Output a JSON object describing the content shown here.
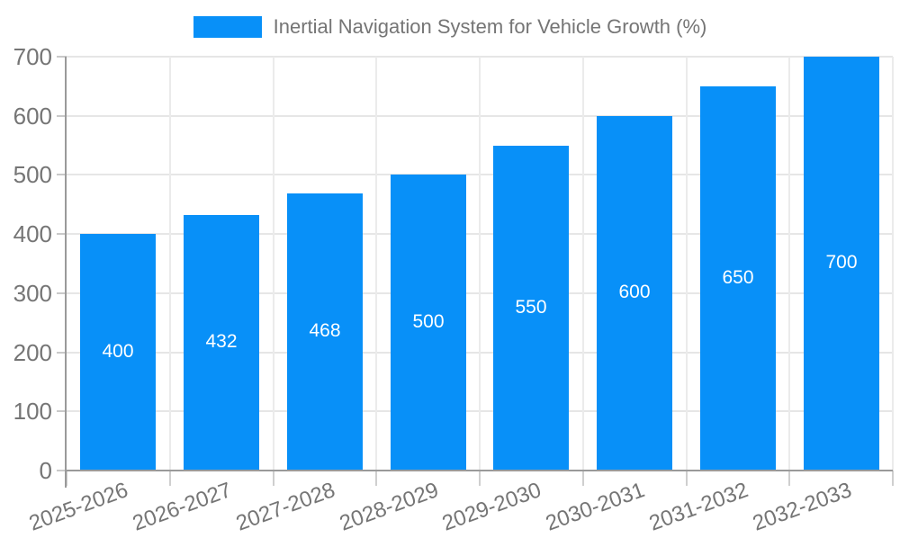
{
  "chart_data": {
    "type": "bar",
    "title": "",
    "categories": [
      "2025-2026",
      "2026-2027",
      "2027-2028",
      "2028-2029",
      "2029-2030",
      "2030-2031",
      "2031-2032",
      "2032-2033"
    ],
    "series": [
      {
        "name": "Inertial Navigation System for Vehicle Growth (%)",
        "values": [
          400,
          432,
          468,
          500,
          550,
          600,
          650,
          700
        ]
      }
    ],
    "value_labels": [
      "400",
      "432",
      "468",
      "500",
      "550",
      "600",
      "650",
      "700"
    ],
    "xlabel": "",
    "ylabel": "",
    "ylim": [
      0,
      700
    ],
    "ytick_step": 100,
    "ytick_labels": [
      "0",
      "100",
      "200",
      "300",
      "400",
      "500",
      "600",
      "700"
    ],
    "grid": "on",
    "legend_position": "top",
    "colors": {
      "bar": "#0890F8",
      "value_label": "#FFFFFF",
      "axis_text": "#757575",
      "gridline": "#E6E6E6",
      "axis_line": "#9A9A9A",
      "background": "#FFFFFF"
    }
  }
}
